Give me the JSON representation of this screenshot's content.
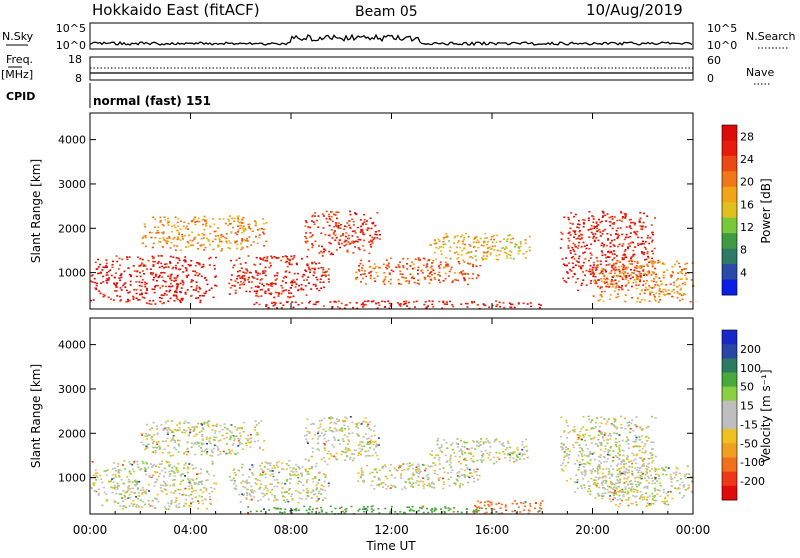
{
  "header": {
    "radar": "Hokkaido East (fitACF)",
    "beam": "Beam 05",
    "date": "10/Aug/2019"
  },
  "strip": {
    "nsky_label": "N.Sky",
    "nsky_ticks": [
      "10^5",
      "10^0"
    ],
    "nsearch_label": "N.Search",
    "nsearch_ticks": [
      "10^5",
      "10^0"
    ],
    "freq_label": "Freq.",
    "freq_unit": "[MHz]",
    "freq_ticks": [
      "18",
      "8"
    ],
    "nave_label": "Nave",
    "nave_ticks": [
      "60",
      "0"
    ],
    "cpid_label": "CPID",
    "cpid_text": "normal (fast) 151"
  },
  "x_axis": {
    "label": "Time UT",
    "ticks": [
      "00:00",
      "04:00",
      "08:00",
      "12:00",
      "16:00",
      "20:00",
      "00:00"
    ]
  },
  "chart_data": [
    {
      "type": "heatmap",
      "name": "power",
      "ylabel": "Slant Range [km]",
      "ylim": [
        180,
        4600
      ],
      "xlim_hours": [
        0,
        24
      ],
      "y_ticks": [
        1000,
        2000,
        3000,
        4000
      ],
      "colorbar": {
        "label": "Power [dB]",
        "ticks": [
          "4",
          "8",
          "12",
          "16",
          "20",
          "24",
          "28"
        ],
        "range": [
          0,
          30
        ],
        "colors": [
          "#0a1ee6",
          "#2a4aa8",
          "#2e7a64",
          "#3f9a44",
          "#78c83a",
          "#e0c020",
          "#f0a418",
          "#f07818",
          "#ec4a14",
          "#e81c0c",
          "#dc0a08"
        ]
      },
      "regions": [
        {
          "t": [
            0.0,
            5.0
          ],
          "range": [
            300,
            1400
          ],
          "value": 27
        },
        {
          "t": [
            2.0,
            7.0
          ],
          "range": [
            1500,
            2300
          ],
          "value": 19
        },
        {
          "t": [
            5.5,
            9.5
          ],
          "range": [
            450,
            1400
          ],
          "value": 26
        },
        {
          "t": [
            8.5,
            11.5
          ],
          "range": [
            1400,
            2400
          ],
          "value": 25
        },
        {
          "t": [
            10.5,
            15.5
          ],
          "range": [
            750,
            1350
          ],
          "value": 22
        },
        {
          "t": [
            13.5,
            17.5
          ],
          "range": [
            1300,
            1900
          ],
          "value": 17
        },
        {
          "t": [
            18.7,
            22.5
          ],
          "range": [
            600,
            2400
          ],
          "value": 26
        },
        {
          "t": [
            20.0,
            24.0
          ],
          "range": [
            350,
            1300
          ],
          "value": 19
        },
        {
          "t": [
            6.0,
            18.0
          ],
          "range": [
            200,
            380
          ],
          "value": 27
        }
      ]
    },
    {
      "type": "heatmap",
      "name": "velocity",
      "ylabel": "Slant Range [km]",
      "ylim": [
        180,
        4600
      ],
      "xlim_hours": [
        0,
        24
      ],
      "y_ticks": [
        1000,
        2000,
        3000,
        4000
      ],
      "colorbar": {
        "label": "Velocity [m s⁻¹]",
        "ticks": [
          "200",
          "100",
          "50",
          "15",
          "-15",
          "-50",
          "-100",
          "-200"
        ],
        "colors": [
          "#1828c8",
          "#2846a6",
          "#2c7a62",
          "#48aa3a",
          "#8ad044",
          "#bebebe",
          "#bebebe",
          "#f0c020",
          "#f0a020",
          "#f07020",
          "#ec3818",
          "#e00c0c"
        ]
      },
      "regions": [
        {
          "t": [
            0.0,
            5.0
          ],
          "range": [
            300,
            1400
          ],
          "value": 0
        },
        {
          "t": [
            2.0,
            7.0
          ],
          "range": [
            1500,
            2300
          ],
          "value": 0
        },
        {
          "t": [
            5.5,
            9.5
          ],
          "range": [
            450,
            1400
          ],
          "value": 0
        },
        {
          "t": [
            8.5,
            11.5
          ],
          "range": [
            1400,
            2400
          ],
          "value": 0
        },
        {
          "t": [
            10.5,
            15.5
          ],
          "range": [
            750,
            1350
          ],
          "value": 0
        },
        {
          "t": [
            13.5,
            17.5
          ],
          "range": [
            1300,
            1900
          ],
          "value": 0
        },
        {
          "t": [
            18.7,
            22.5
          ],
          "range": [
            600,
            2400
          ],
          "value": 0
        },
        {
          "t": [
            20.0,
            24.0
          ],
          "range": [
            350,
            1300
          ],
          "value": 0
        },
        {
          "t": [
            6.0,
            16.0
          ],
          "range": [
            200,
            380
          ],
          "value": 30
        },
        {
          "t": [
            15.0,
            18.0
          ],
          "range": [
            200,
            500
          ],
          "value": -60
        }
      ]
    }
  ]
}
